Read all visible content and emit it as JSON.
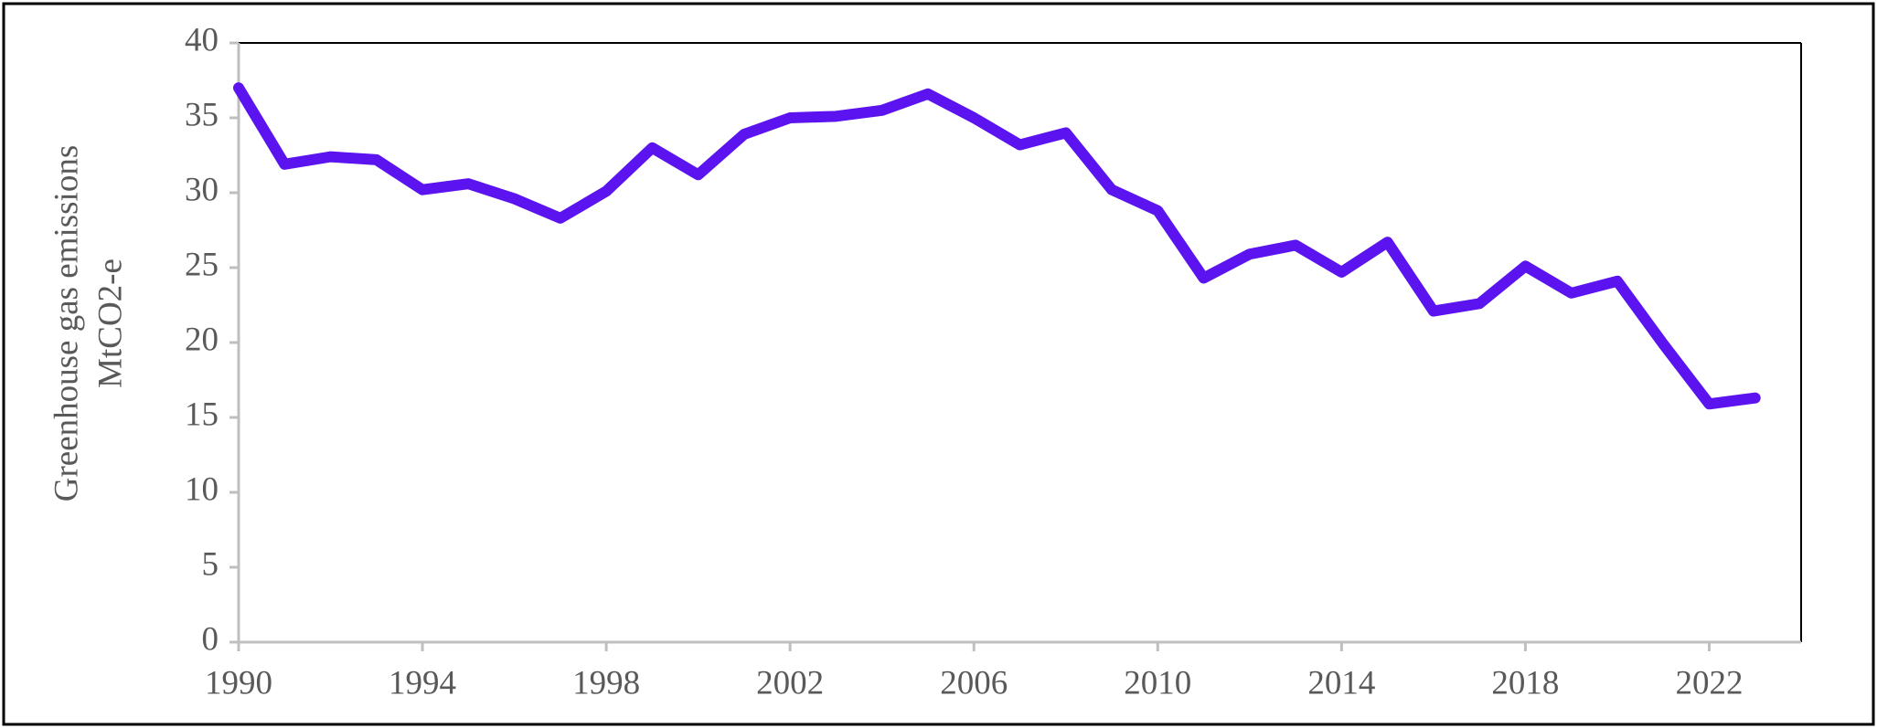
{
  "chart_data": {
    "type": "line",
    "ylabel": [
      "Greenhouse gas emissions",
      "MtCO2-e"
    ],
    "x": [
      1990,
      1991,
      1992,
      1993,
      1994,
      1995,
      1996,
      1997,
      1998,
      1999,
      2000,
      2001,
      2002,
      2003,
      2004,
      2005,
      2006,
      2007,
      2008,
      2009,
      2010,
      2011,
      2012,
      2013,
      2014,
      2015,
      2016,
      2017,
      2018,
      2019,
      2020,
      2021,
      2022,
      2023
    ],
    "values": [
      37,
      31.9,
      32.4,
      32.2,
      30.2,
      30.6,
      29.6,
      28.3,
      30.1,
      33,
      31.2,
      33.9,
      35,
      35.1,
      35.5,
      36.6,
      35,
      33.2,
      34,
      30.2,
      28.8,
      24.3,
      25.9,
      26.5,
      24.7,
      26.7,
      22.1,
      22.6,
      25.1,
      23.3,
      24.1,
      19.9,
      15.9,
      16.3
    ],
    "color": "#5b14ef",
    "xlim": [
      1990,
      2024
    ],
    "xticks": [
      1990,
      1994,
      1998,
      2002,
      2006,
      2010,
      2014,
      2018,
      2022
    ],
    "ylim": [
      0,
      40
    ],
    "yticks": [
      0,
      5,
      10,
      15,
      20,
      25,
      30,
      35,
      40
    ],
    "grid": false
  }
}
